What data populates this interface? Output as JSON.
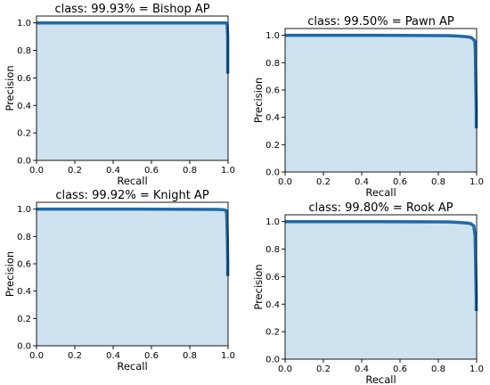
{
  "chart_data": [
    {
      "type": "area",
      "title": "class: 99.93% = Bishop AP",
      "xlabel": "Recall",
      "ylabel": "Precision",
      "xlim": [
        0.0,
        1.0
      ],
      "ylim": [
        0.0,
        1.05
      ],
      "xticks": [
        "0.0",
        "0.2",
        "0.4",
        "0.6",
        "0.8",
        "1.0"
      ],
      "yticks": [
        "0.0",
        "0.2",
        "0.4",
        "0.6",
        "0.8",
        "1.0"
      ],
      "series": [
        {
          "x": [
            0.0,
            0.5,
            0.99,
            0.995,
            0.998,
            0.998
          ],
          "y": [
            1.0,
            1.0,
            1.0,
            0.99,
            0.9,
            0.63
          ]
        }
      ]
    },
    {
      "type": "area",
      "title": "class: 99.50% = Pawn AP",
      "xlabel": "Recall",
      "ylabel": "Precision",
      "xlim": [
        0.0,
        1.0
      ],
      "ylim": [
        0.0,
        1.05
      ],
      "xticks": [
        "0.0",
        "0.2",
        "0.4",
        "0.6",
        "0.8",
        "1.0"
      ],
      "yticks": [
        "0.0",
        "0.2",
        "0.4",
        "0.6",
        "0.8",
        "1.0"
      ],
      "series": [
        {
          "x": [
            0.0,
            0.5,
            0.85,
            0.9,
            0.95,
            0.97,
            0.98,
            0.99,
            0.993,
            0.996,
            0.998,
            0.998
          ],
          "y": [
            1.0,
            1.0,
            0.998,
            0.995,
            0.99,
            0.985,
            0.975,
            0.96,
            0.9,
            0.6,
            0.45,
            0.32
          ]
        }
      ]
    },
    {
      "type": "area",
      "title": "class: 99.92% = Knight AP",
      "xlabel": "Recall",
      "ylabel": "Precision",
      "xlim": [
        0.0,
        1.0
      ],
      "ylim": [
        0.0,
        1.05
      ],
      "xticks": [
        "0.0",
        "0.2",
        "0.4",
        "0.6",
        "0.8",
        "1.0"
      ],
      "yticks": [
        "0.0",
        "0.2",
        "0.4",
        "0.6",
        "0.8",
        "1.0"
      ],
      "series": [
        {
          "x": [
            0.0,
            0.5,
            0.95,
            0.98,
            0.99,
            0.993,
            0.996,
            0.998,
            0.998
          ],
          "y": [
            1.0,
            1.0,
            0.998,
            0.995,
            0.99,
            0.96,
            0.8,
            0.62,
            0.51
          ]
        }
      ]
    },
    {
      "type": "area",
      "title": "class: 99.80% = Rook AP",
      "xlabel": "Recall",
      "ylabel": "Precision",
      "xlim": [
        0.0,
        1.0
      ],
      "ylim": [
        0.0,
        1.05
      ],
      "xticks": [
        "0.0",
        "0.2",
        "0.4",
        "0.6",
        "0.8",
        "1.0"
      ],
      "yticks": [
        "0.0",
        "0.2",
        "0.4",
        "0.6",
        "0.8",
        "1.0"
      ],
      "series": [
        {
          "x": [
            0.0,
            0.5,
            0.85,
            0.9,
            0.95,
            0.97,
            0.985,
            0.992,
            0.996,
            0.998,
            0.998
          ],
          "y": [
            1.0,
            1.0,
            0.998,
            0.995,
            0.99,
            0.985,
            0.97,
            0.9,
            0.6,
            0.45,
            0.35
          ]
        }
      ]
    }
  ]
}
